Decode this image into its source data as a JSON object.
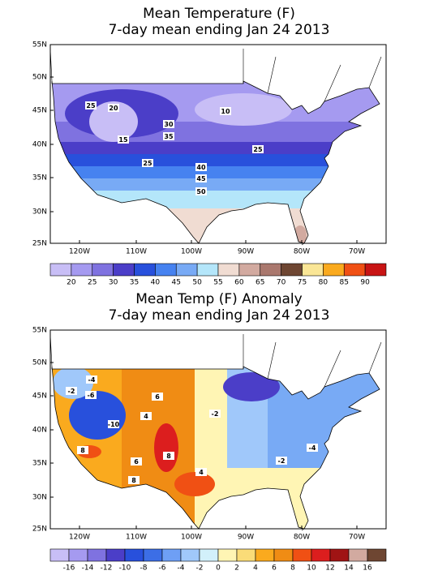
{
  "panels": [
    {
      "title": "Mean Temperature (F)",
      "subtitle": "7-day mean ending Jan 24 2013",
      "lat_labels": [
        "55N",
        "50N",
        "45N",
        "40N",
        "35N",
        "30N",
        "25N"
      ],
      "lon_labels": [
        "120W",
        "110W",
        "100W",
        "90W",
        "80W",
        "70W"
      ],
      "contour_labels": [
        25,
        20,
        10,
        30,
        15,
        35,
        25,
        25,
        40,
        45,
        50
      ],
      "colorbar": {
        "labels": [
          20,
          25,
          30,
          35,
          40,
          45,
          50,
          55,
          60,
          65,
          70,
          75,
          80,
          85,
          90
        ],
        "colors": [
          "#c8bef6",
          "#a59af0",
          "#7f72e0",
          "#4b3ec8",
          "#2850dc",
          "#4682f0",
          "#78aaf5",
          "#b4e6fa",
          "#f0dcd2",
          "#d2aaa0",
          "#aa786e",
          "#6e4632",
          "#fae696",
          "#faaa1e",
          "#f05014",
          "#c81414"
        ]
      }
    },
    {
      "title": "Mean Temp (F) Anomaly",
      "subtitle": "7-day mean ending Jan 24 2013",
      "lat_labels": [
        "55N",
        "50N",
        "45N",
        "40N",
        "35N",
        "30N",
        "25N"
      ],
      "lon_labels": [
        "120W",
        "110W",
        "100W",
        "90W",
        "80W",
        "70W"
      ],
      "contour_labels": [
        -4,
        -2,
        -6,
        -10,
        4,
        6,
        -2,
        8,
        8,
        6,
        4,
        8,
        -4,
        -2
      ],
      "colorbar": {
        "labels": [
          -16,
          -14,
          -12,
          -10,
          -8,
          -6,
          -4,
          -2,
          0,
          2,
          4,
          6,
          8,
          10,
          12,
          14,
          16
        ],
        "colors": [
          "#c8bef6",
          "#a59af0",
          "#7f72e0",
          "#4b3ec8",
          "#2850dc",
          "#3c6ee6",
          "#6e9ff5",
          "#a0c8fa",
          "#d2f0fa",
          "#fff5b4",
          "#fadc78",
          "#faaa1e",
          "#f08c14",
          "#f05014",
          "#dc1e1e",
          "#a01414",
          "#d2aaa0",
          "#6e4632"
        ]
      }
    }
  ]
}
